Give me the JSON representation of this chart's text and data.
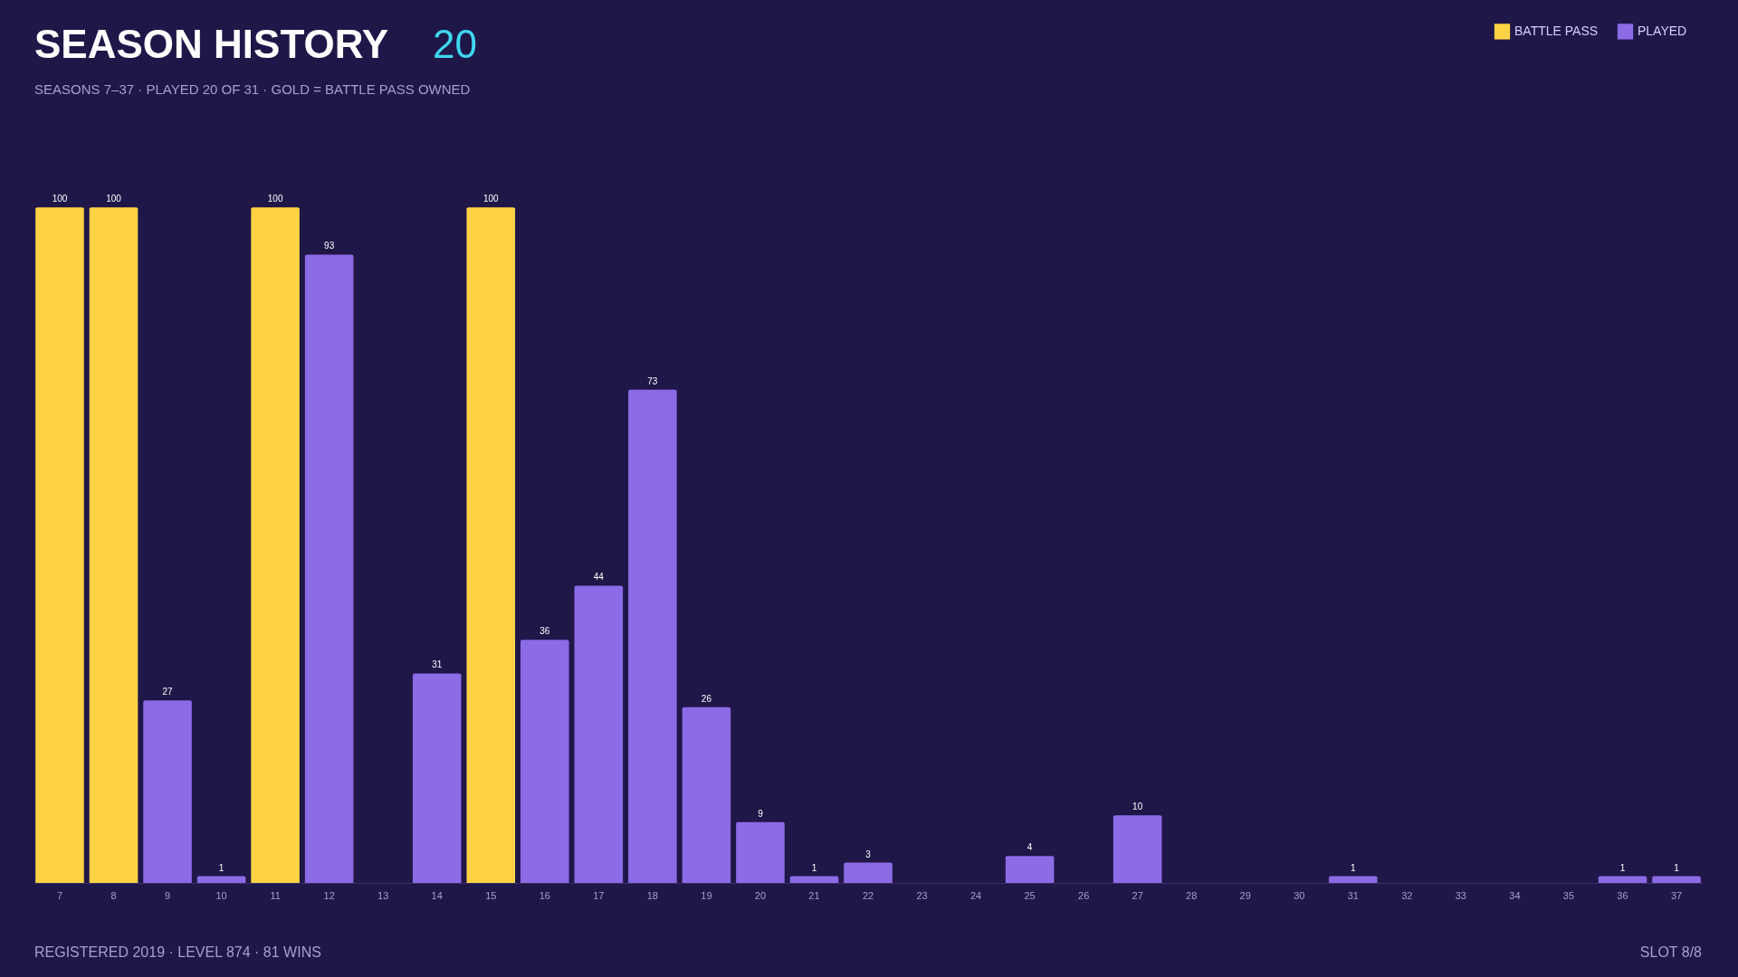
{
  "chart_data": {
    "type": "bar",
    "title": "SEASON HISTORY",
    "subtitle": "SEASONS 7–37 · PLAYED 20 OF 31 · GOLD = BATTLE PASS OWNED",
    "annotations": [
      "20",
      "REGISTERED 2019 · LEVEL 874 · 81 WINS",
      "SLOT 8/8"
    ],
    "categories": [
      "7",
      "8",
      "9",
      "10",
      "11",
      "12",
      "13",
      "14",
      "15",
      "16",
      "17",
      "18",
      "19",
      "20",
      "21",
      "22",
      "23",
      "24",
      "25",
      "26",
      "27",
      "28",
      "29",
      "30",
      "31",
      "32",
      "33",
      "34",
      "35",
      "36",
      "37"
    ],
    "series": [
      {
        "name": "BATTLE PASS",
        "color": "#fdd244",
        "values": [
          100,
          100,
          null,
          null,
          100,
          null,
          null,
          null,
          100,
          null,
          null,
          null,
          null,
          null,
          null,
          null,
          null,
          null,
          null,
          null,
          null,
          null,
          null,
          null,
          null,
          null,
          null,
          null,
          null,
          null,
          null
        ]
      },
      {
        "name": "PLAYED",
        "color": "#8b6be6",
        "values": [
          null,
          null,
          27,
          1,
          null,
          93,
          null,
          31,
          null,
          36,
          44,
          73,
          26,
          9,
          1,
          3,
          null,
          null,
          4,
          null,
          10,
          null,
          null,
          null,
          1,
          null,
          null,
          null,
          null,
          1,
          1
        ]
      }
    ],
    "data_labels": true,
    "legend": "top right",
    "grid": false
  }
}
